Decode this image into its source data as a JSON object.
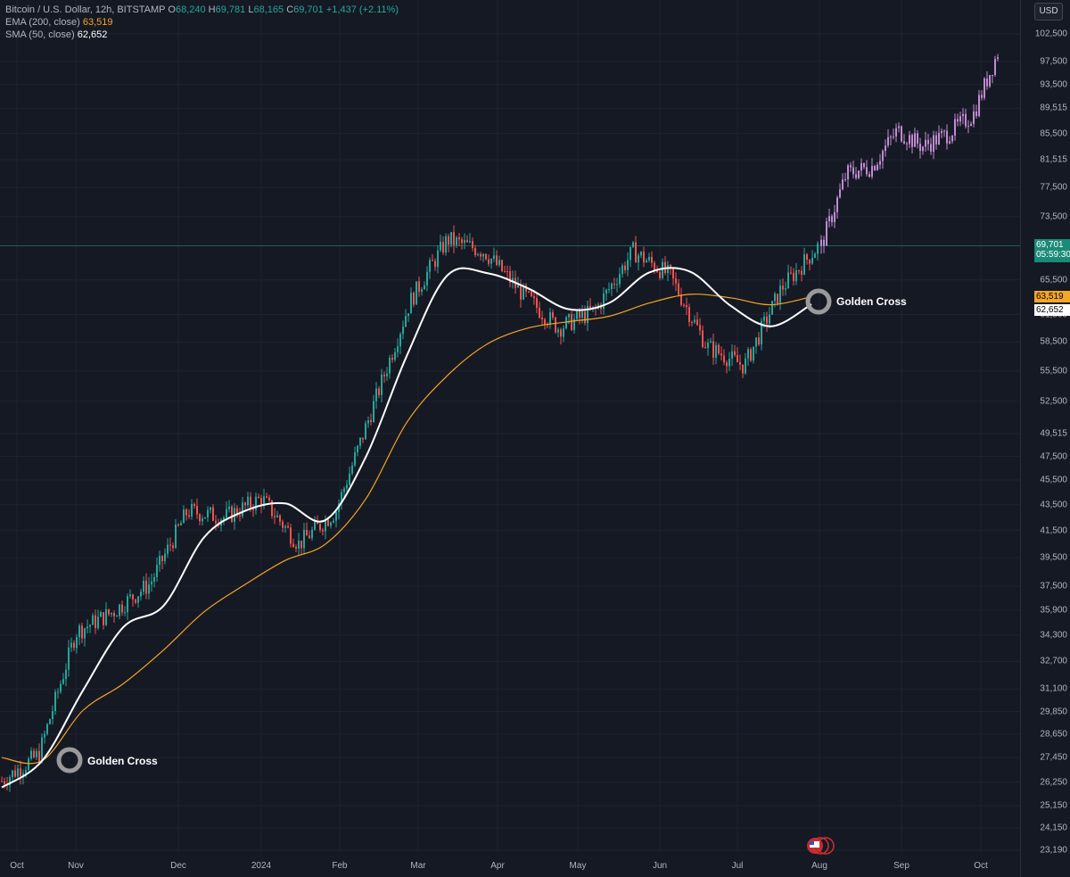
{
  "legend": {
    "symbol": "Bitcoin / U.S. Dollar, 12h, BITSTAMP",
    "open_label": "O",
    "open": "68,240",
    "high_label": "H",
    "high": "69,781",
    "low_label": "L",
    "low": "68,165",
    "close_label": "C",
    "close": "69,701",
    "change": "+1,437 (+2.11%)",
    "ema_label": "EMA (200, close)",
    "ema_value": "63,519",
    "sma_label": "SMA (50, close)",
    "sma_value": "62,652"
  },
  "currency_button": "USD",
  "price_tags": {
    "last_price": "69,701",
    "countdown": "05:59:30",
    "ema": "63,519",
    "sma": "62,652"
  },
  "annotations": [
    "Golden Cross",
    "Golden Cross"
  ],
  "colors": {
    "background": "#151924",
    "up": "#26a69a",
    "down": "#ef5350",
    "projection": "#c18bd1",
    "ema": "#f5a623",
    "sma": "#ffffff",
    "grid": "#1f2330"
  },
  "chart_data": {
    "type": "candlestick",
    "title": "Bitcoin / U.S. Dollar, 12h, BITSTAMP",
    "scale": "log",
    "ylim": [
      23190,
      102500
    ],
    "y_ticks": [
      "102,500",
      "97,500",
      "93,500",
      "89,515",
      "85,500",
      "81,515",
      "77,500",
      "73,500",
      "69,701",
      "65,500",
      "61,500",
      "58,500",
      "55,500",
      "52,500",
      "49,515",
      "47,500",
      "45,500",
      "43,500",
      "41,500",
      "39,500",
      "37,500",
      "35,900",
      "34,300",
      "32,700",
      "31,100",
      "29,850",
      "28,650",
      "27,450",
      "26,250",
      "25,150",
      "24,150",
      "23,190"
    ],
    "x_ticks": [
      "Oct",
      "Nov",
      "Dec",
      "2024",
      "Feb",
      "Mar",
      "Apr",
      "May",
      "Jun",
      "Jul",
      "Aug",
      "Sep",
      "Oct"
    ],
    "series": [
      {
        "name": "EMA (200, close)",
        "last": 63519
      },
      {
        "name": "SMA (50, close)",
        "last": 62652
      }
    ],
    "actual_price_path": [
      [
        "Oct",
        26300
      ],
      [
        "Oct",
        27600
      ],
      [
        "Nov",
        34500
      ],
      [
        "Nov",
        35800
      ],
      [
        "Dec",
        37700
      ],
      [
        "Dec",
        43000
      ],
      [
        "2024",
        42500
      ],
      [
        "2024",
        44000
      ],
      [
        "2024",
        40500
      ],
      [
        "Feb",
        43000
      ],
      [
        "Feb",
        52000
      ],
      [
        "Mar",
        63000
      ],
      [
        "Mar",
        70500
      ],
      [
        "Apr",
        69000
      ],
      [
        "Apr",
        64000
      ],
      [
        "May",
        60000
      ],
      [
        "May",
        62000
      ],
      [
        "Jun",
        69000
      ],
      [
        "Jun",
        66000
      ],
      [
        "Jul",
        58000
      ],
      [
        "Jul",
        56000
      ],
      [
        "Jul",
        64500
      ],
      [
        "Aug",
        69701
      ]
    ],
    "projected_price_path": [
      [
        "Aug",
        69701
      ],
      [
        "Aug",
        79500
      ],
      [
        "Sep",
        80500
      ],
      [
        "Sep",
        86000
      ],
      [
        "Sep",
        83500
      ],
      [
        "Oct",
        85500
      ],
      [
        "Oct",
        88500
      ],
      [
        "Oct",
        99500
      ]
    ],
    "sma_path": [
      [
        "Oct",
        26000
      ],
      [
        "Oct",
        27300
      ],
      [
        "Nov",
        31000
      ],
      [
        "Nov",
        34800
      ],
      [
        "Dec",
        36200
      ],
      [
        "Dec",
        41000
      ],
      [
        "2024",
        43000
      ],
      [
        "2024",
        43600
      ],
      [
        "Feb",
        42300
      ],
      [
        "Feb",
        47500
      ],
      [
        "Mar",
        57000
      ],
      [
        "Mar",
        66000
      ],
      [
        "Apr",
        66300
      ],
      [
        "Apr",
        64500
      ],
      [
        "May",
        62100
      ],
      [
        "May",
        62800
      ],
      [
        "Jun",
        66400
      ],
      [
        "Jun",
        66500
      ],
      [
        "Jul",
        62500
      ],
      [
        "Jul",
        60200
      ],
      [
        "Aug",
        62652
      ]
    ],
    "ema_path": [
      [
        "Oct",
        27450
      ],
      [
        "Oct",
        27300
      ],
      [
        "Nov",
        29900
      ],
      [
        "Nov",
        31400
      ],
      [
        "Dec",
        33400
      ],
      [
        "Dec",
        35800
      ],
      [
        "2024",
        37600
      ],
      [
        "2024",
        39300
      ],
      [
        "Feb",
        40500
      ],
      [
        "Feb",
        44000
      ],
      [
        "Mar",
        50500
      ],
      [
        "Mar",
        55000
      ],
      [
        "Apr",
        58300
      ],
      [
        "Apr",
        60000
      ],
      [
        "May",
        60700
      ],
      [
        "May",
        61300
      ],
      [
        "Jun",
        62800
      ],
      [
        "Jun",
        63800
      ],
      [
        "Jul",
        63400
      ],
      [
        "Jul",
        62600
      ],
      [
        "Aug",
        63519
      ]
    ],
    "annotations": [
      {
        "text": "Golden Cross",
        "date": "Oct",
        "price": 27400
      },
      {
        "text": "Golden Cross",
        "date": "Aug",
        "price": 63000
      }
    ]
  }
}
